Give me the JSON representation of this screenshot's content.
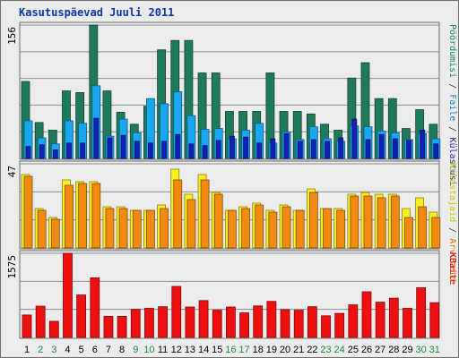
{
  "title": "Kasutuspäevad Juuli 2011",
  "right_labels": {
    "panel1": [
      {
        "text": "Pöördumisi",
        "color": "#1a8a5c"
      },
      {
        "text": " / ",
        "color": "#333333"
      },
      {
        "text": "Faile",
        "color": "#1a80c0"
      },
      {
        "text": " / ",
        "color": "#333333"
      },
      {
        "text": "Külastusi",
        "color": "#2a2aa0"
      }
    ],
    "panel2": [
      {
        "text": "Külastajaid",
        "color": "#c8c800"
      },
      {
        "text": " / ",
        "color": "#333333"
      },
      {
        "text": "Arvuteid",
        "color": "#e07800"
      }
    ],
    "panel3": [
      {
        "text": "KBaite",
        "color": "#e00000"
      }
    ]
  },
  "colors": {
    "pageviews_or_hits": "#1e7a5a",
    "files": "#19a8f0",
    "visits": "#1020b8",
    "visitors": "#f8f020",
    "computers": "#f08a10",
    "kbytes": "#ee1010",
    "weekend_label": "#1a8a40",
    "weekday_label": "#000000"
  },
  "chart_data": [
    {
      "type": "bar",
      "title": "Kasutuspäevad Juuli 2011",
      "categories": [
        "1",
        "2",
        "3",
        "4",
        "5",
        "6",
        "7",
        "8",
        "9",
        "10",
        "11",
        "12",
        "13",
        "14",
        "15",
        "16",
        "17",
        "18",
        "19",
        "20",
        "21",
        "22",
        "23",
        "24",
        "25",
        "26",
        "27",
        "28",
        "29",
        "30",
        "31"
      ],
      "weekend_days": [
        "2",
        "3",
        "9",
        "10",
        "16",
        "17",
        "23",
        "24",
        "30",
        "31"
      ],
      "ylim": [
        0,
        156
      ],
      "ytick_label": "156",
      "series": [
        {
          "name": "Pöördumisi",
          "values": [
            90,
            42,
            33,
            79,
            77,
            156,
            79,
            54,
            40,
            61,
            127,
            138,
            138,
            100,
            100,
            55,
            55,
            55,
            100,
            55,
            55,
            52,
            40,
            33,
            94,
            112,
            70,
            70,
            35,
            57,
            40
          ]
        },
        {
          "name": "Faile",
          "values": [
            44,
            24,
            17,
            44,
            41,
            85,
            26,
            46,
            30,
            70,
            64,
            78,
            50,
            34,
            35,
            23,
            33,
            41,
            18,
            31,
            22,
            37,
            23,
            20,
            38,
            37,
            32,
            30,
            22,
            29,
            23
          ]
        },
        {
          "name": "Külastusi",
          "values": [
            14,
            16,
            10,
            18,
            18,
            47,
            24,
            27,
            20,
            18,
            20,
            28,
            17,
            15,
            21,
            26,
            25,
            18,
            23,
            29,
            20,
            22,
            20,
            24,
            46,
            22,
            28,
            23,
            21,
            33,
            17
          ]
        }
      ]
    },
    {
      "type": "bar",
      "categories": [
        "1",
        "2",
        "3",
        "4",
        "5",
        "6",
        "7",
        "8",
        "9",
        "10",
        "11",
        "12",
        "13",
        "14",
        "15",
        "16",
        "17",
        "18",
        "19",
        "20",
        "21",
        "22",
        "23",
        "24",
        "25",
        "26",
        "27",
        "28",
        "29",
        "30",
        "31"
      ],
      "ylim": [
        0,
        47
      ],
      "ytick_label": "47",
      "series": [
        {
          "name": "Külastajaid",
          "values": [
            41,
            22,
            17,
            38,
            37,
            37,
            23,
            23,
            21,
            21,
            24,
            44,
            30,
            41,
            31,
            21,
            23,
            25,
            21,
            24,
            21,
            33,
            22,
            22,
            30,
            31,
            30,
            30,
            22,
            28,
            20
          ]
        },
        {
          "name": "Arvuteid",
          "values": [
            40,
            21,
            16,
            35,
            36,
            36,
            22,
            22,
            21,
            21,
            22,
            38,
            27,
            38,
            30,
            21,
            22,
            24,
            20,
            23,
            21,
            31,
            22,
            21,
            29,
            29,
            28,
            29,
            17,
            23,
            17
          ]
        }
      ]
    },
    {
      "type": "bar",
      "categories": [
        "1",
        "2",
        "3",
        "4",
        "5",
        "6",
        "7",
        "8",
        "9",
        "10",
        "11",
        "12",
        "13",
        "14",
        "15",
        "16",
        "17",
        "18",
        "19",
        "20",
        "21",
        "22",
        "23",
        "24",
        "25",
        "26",
        "27",
        "28",
        "29",
        "30",
        "31"
      ],
      "ylim": [
        0,
        1575
      ],
      "ytick_label": "1575",
      "series": [
        {
          "name": "KBaite",
          "values": [
            420,
            585,
            302,
            1575,
            795,
            1115,
            395,
            395,
            525,
            545,
            575,
            955,
            570,
            690,
            510,
            570,
            460,
            590,
            675,
            520,
            510,
            575,
            405,
            450,
            610,
            855,
            660,
            735,
            545,
            930,
            650
          ]
        }
      ]
    }
  ]
}
